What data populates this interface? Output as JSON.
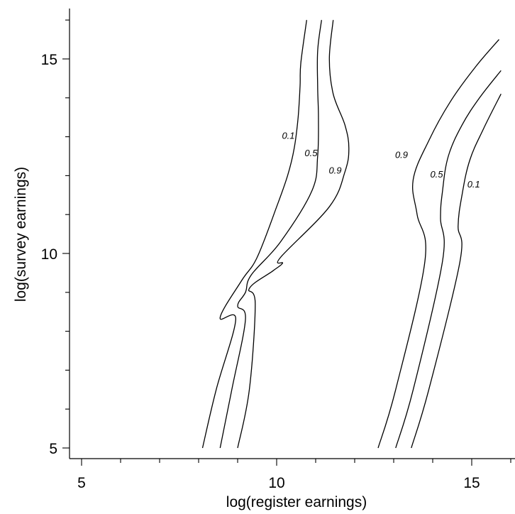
{
  "chart_data": {
    "type": "contour",
    "xlabel": "log(register earnings)",
    "ylabel": "log(survey earnings)",
    "xlim": [
      4.8,
      16
    ],
    "ylim": [
      4.8,
      16.1
    ],
    "x_ticks": [
      5,
      10,
      15
    ],
    "y_ticks": [
      5,
      10,
      15
    ],
    "x_minor_ticks": [
      6,
      7,
      8,
      9,
      11,
      12,
      13,
      14,
      16
    ],
    "y_minor_ticks": [
      6,
      7,
      8,
      9,
      11,
      12,
      13,
      14,
      16
    ],
    "grid": false,
    "line_color": "#000000",
    "series": [
      {
        "name": "0.1",
        "points": [
          [
            8.1,
            5.0
          ],
          [
            8.45,
            6.5
          ],
          [
            8.95,
            8.3
          ],
          [
            8.55,
            8.35
          ],
          [
            9.1,
            9.3
          ],
          [
            9.5,
            9.9
          ],
          [
            10.0,
            11.2
          ],
          [
            10.28,
            12.0
          ],
          [
            10.45,
            12.7
          ],
          [
            10.55,
            13.5
          ],
          [
            10.6,
            14.3
          ],
          [
            10.62,
            14.9
          ],
          [
            10.77,
            16.0
          ]
        ],
        "label_pos": [
          10.3,
          12.95
        ]
      },
      {
        "name": "0.5",
        "points": [
          [
            8.55,
            5.0
          ],
          [
            8.85,
            6.5
          ],
          [
            9.2,
            8.3
          ],
          [
            9.0,
            8.65
          ],
          [
            9.2,
            9.0
          ],
          [
            9.35,
            9.45
          ],
          [
            10.1,
            10.3
          ],
          [
            10.9,
            11.6
          ],
          [
            11.05,
            12.5
          ],
          [
            11.07,
            13.5
          ],
          [
            11.05,
            14.3
          ],
          [
            11.05,
            15.2
          ],
          [
            11.15,
            16.0
          ]
        ],
        "label_pos": [
          10.88,
          12.5
        ]
      },
      {
        "name": "0.9",
        "points": [
          [
            9.0,
            5.0
          ],
          [
            9.3,
            6.5
          ],
          [
            9.45,
            8.7
          ],
          [
            9.3,
            9.1
          ],
          [
            9.9,
            9.55
          ],
          [
            10.15,
            9.75
          ],
          [
            10.1,
            9.9
          ],
          [
            11.35,
            11.2
          ],
          [
            11.75,
            12.1
          ],
          [
            11.85,
            12.7
          ],
          [
            11.75,
            13.3
          ],
          [
            11.45,
            14.1
          ],
          [
            11.35,
            15.0
          ],
          [
            11.45,
            16.0
          ]
        ],
        "label_pos": [
          11.5,
          12.05
        ]
      },
      {
        "name": "0.9",
        "points": [
          [
            12.6,
            5.0
          ],
          [
            13.05,
            6.5
          ],
          [
            13.8,
            9.8
          ],
          [
            13.6,
            11.0
          ],
          [
            13.5,
            11.9
          ],
          [
            13.9,
            12.9
          ],
          [
            14.45,
            13.9
          ],
          [
            15.1,
            14.8
          ],
          [
            15.7,
            15.5
          ]
        ],
        "label_pos": [
          13.2,
          12.45
        ]
      },
      {
        "name": "0.5",
        "points": [
          [
            13.05,
            5.0
          ],
          [
            13.5,
            6.5
          ],
          [
            14.25,
            9.8
          ],
          [
            14.2,
            10.9
          ],
          [
            14.25,
            11.6
          ],
          [
            14.4,
            12.5
          ],
          [
            14.75,
            13.3
          ],
          [
            15.2,
            14.0
          ],
          [
            15.75,
            14.7
          ]
        ],
        "label_pos": [
          14.1,
          11.95
        ]
      },
      {
        "name": "0.1",
        "points": [
          [
            13.45,
            5.0
          ],
          [
            13.9,
            6.5
          ],
          [
            14.7,
            9.8
          ],
          [
            14.65,
            10.7
          ],
          [
            14.75,
            11.5
          ],
          [
            14.95,
            12.4
          ],
          [
            15.3,
            13.2
          ],
          [
            15.75,
            14.1
          ]
        ],
        "label_pos": [
          15.05,
          11.7
        ]
      }
    ]
  }
}
